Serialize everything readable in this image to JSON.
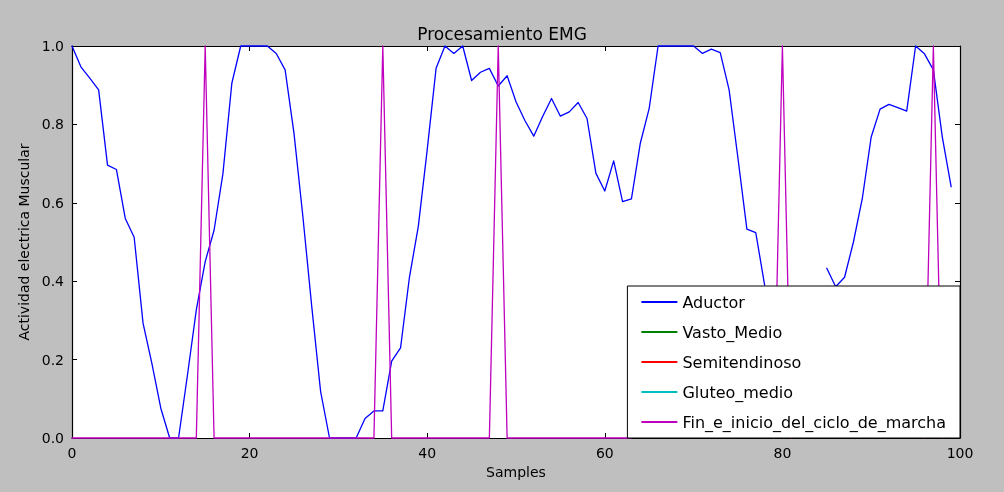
{
  "chart_data": {
    "type": "line",
    "title": "Procesamiento EMG",
    "xlabel": "Samples",
    "ylabel": "Actividad electrica Muscular",
    "x": [
      0,
      1,
      2,
      3,
      4,
      5,
      6,
      7,
      8,
      9,
      10,
      11,
      12,
      13,
      14,
      15,
      16,
      17,
      18,
      19,
      20,
      21,
      22,
      23,
      24,
      25,
      26,
      27,
      28,
      29,
      30,
      31,
      32,
      33,
      34,
      35,
      36,
      37,
      38,
      39,
      40,
      41,
      42,
      43,
      44,
      45,
      46,
      47,
      48,
      49,
      50,
      51,
      52,
      53,
      54,
      55,
      56,
      57,
      58,
      59,
      60,
      61,
      62,
      63,
      64,
      65,
      66,
      67,
      68,
      69,
      70,
      71,
      72,
      73,
      74,
      75,
      76,
      77,
      78,
      79,
      80,
      81,
      82,
      83,
      84,
      85,
      86,
      87,
      88,
      89,
      90,
      91,
      92,
      93,
      94,
      95,
      96,
      97,
      98,
      99
    ],
    "series": [
      {
        "name": "Aductor",
        "color": "#0000ff",
        "values": [
          1.0,
          0.947,
          0.918,
          0.888,
          0.696,
          0.685,
          0.56,
          0.512,
          0.293,
          0.19,
          0.076,
          0,
          0,
          0.16,
          0.327,
          0.45,
          0.53,
          0.675,
          0.905,
          1.0,
          1.0,
          1.0,
          1.0,
          0.981,
          0.939,
          0.777,
          0.565,
          0.335,
          0.118,
          0,
          0,
          0,
          0,
          0.05,
          0.069,
          0.069,
          0.196,
          0.23,
          0.41,
          0.54,
          0.735,
          0.943,
          1.0,
          0.981,
          1.0,
          0.912,
          0.933,
          0.943,
          0.898,
          0.924,
          0.858,
          0.81,
          0.77,
          0.82,
          0.866,
          0.821,
          0.832,
          0.856,
          0.815,
          0.675,
          0.63,
          0.707,
          0.603,
          0.61,
          0.752,
          0.841,
          1.0,
          1.0,
          1.0,
          1.0,
          1.0,
          0.981,
          0.992,
          0.983,
          0.888,
          0.713,
          0.533,
          0.524,
          0.39,
          null,
          null,
          null,
          null,
          null,
          null,
          0.433,
          0.386,
          0.41,
          0.5,
          0.611,
          0.768,
          0.839,
          0.851,
          0.843,
          0.834,
          1.0,
          0.98,
          0.939,
          0.769,
          0.641
        ]
      },
      {
        "name": "Vasto_Medio",
        "color": "#008000",
        "values": [
          null,
          null,
          null,
          null,
          null,
          null,
          null,
          null,
          null,
          null,
          null,
          null,
          null,
          null,
          null,
          null,
          null,
          null,
          null,
          null,
          null,
          null,
          null,
          null,
          null,
          null,
          null,
          null,
          null,
          null,
          null,
          null,
          null,
          null,
          null,
          null,
          null,
          null,
          null,
          null,
          null,
          null,
          null,
          null,
          null,
          null,
          null,
          null,
          null,
          null,
          null,
          null,
          null,
          null,
          null,
          null,
          null,
          null,
          null,
          null,
          null,
          null,
          null,
          null,
          null,
          null,
          null,
          null,
          null,
          null,
          null,
          null,
          null,
          null,
          null,
          null,
          null,
          null,
          null,
          null,
          null,
          null,
          null,
          null,
          null,
          null,
          null,
          null,
          null,
          null,
          null,
          null,
          null,
          null,
          null,
          null,
          null,
          null,
          null,
          null
        ]
      },
      {
        "name": "Semitendinoso",
        "color": "#ff0000",
        "values": [
          null,
          null,
          null,
          null,
          null,
          null,
          null,
          null,
          null,
          null,
          null,
          null,
          null,
          null,
          null,
          null,
          null,
          null,
          null,
          null,
          null,
          null,
          null,
          null,
          null,
          null,
          null,
          null,
          null,
          null,
          null,
          null,
          null,
          null,
          null,
          null,
          null,
          null,
          null,
          null,
          null,
          null,
          null,
          null,
          null,
          null,
          null,
          null,
          null,
          null,
          null,
          null,
          null,
          null,
          null,
          null,
          null,
          null,
          null,
          null,
          null,
          null,
          null,
          null,
          null,
          null,
          null,
          null,
          null,
          null,
          null,
          null,
          null,
          null,
          null,
          null,
          null,
          null,
          null,
          null,
          null,
          null,
          null,
          null,
          null,
          null,
          null,
          null,
          null,
          null,
          null,
          null,
          null,
          null,
          null,
          null,
          null,
          null,
          null,
          null
        ]
      },
      {
        "name": "Gluteo_medio",
        "color": "#00bfbf",
        "values": [
          null,
          null,
          null,
          null,
          null,
          null,
          null,
          null,
          null,
          null,
          null,
          null,
          null,
          null,
          null,
          null,
          null,
          null,
          null,
          null,
          null,
          null,
          null,
          null,
          null,
          null,
          null,
          null,
          null,
          null,
          null,
          null,
          null,
          null,
          null,
          null,
          null,
          null,
          null,
          null,
          null,
          null,
          null,
          null,
          null,
          null,
          null,
          null,
          null,
          null,
          null,
          null,
          null,
          null,
          null,
          null,
          null,
          null,
          null,
          null,
          null,
          null,
          null,
          null,
          null,
          null,
          null,
          null,
          null,
          null,
          null,
          null,
          null,
          null,
          null,
          null,
          null,
          null,
          null,
          null,
          null,
          null,
          null,
          null,
          null,
          null,
          null,
          null,
          null,
          null,
          null,
          null,
          null,
          null,
          null,
          null,
          null,
          null,
          null,
          null
        ]
      },
      {
        "name": "Fin_e_inicio_del_ciclo_de_marcha",
        "color": "#bf00bf",
        "values": [
          0,
          0,
          0,
          0,
          0,
          0,
          0,
          0,
          0,
          0,
          0,
          0,
          0,
          0,
          0,
          1,
          0,
          0,
          0,
          0,
          0,
          0,
          0,
          0,
          0,
          0,
          0,
          0,
          0,
          0,
          0,
          0,
          0,
          0,
          0,
          1,
          0,
          0,
          0,
          0,
          0,
          0,
          0,
          0,
          0,
          0,
          0,
          0,
          1,
          0,
          0,
          0,
          0,
          0,
          0,
          0,
          0,
          0,
          0,
          0,
          0,
          0,
          0,
          0,
          null,
          null,
          null,
          null,
          null,
          null,
          null,
          null,
          null,
          null,
          null,
          null,
          null,
          null,
          null,
          0,
          1,
          0,
          null,
          null,
          null,
          null,
          null,
          null,
          null,
          null,
          null,
          null,
          null,
          null,
          null,
          null,
          0,
          1,
          0,
          null
        ]
      }
    ],
    "xlim": [
      0,
      100
    ],
    "xticks": [
      0,
      20,
      40,
      60,
      80,
      100
    ],
    "ylim": [
      0,
      1.0
    ],
    "yticks": [
      {
        "value": 0,
        "label": "0.0"
      },
      {
        "value": 0.2,
        "label": "0.2"
      },
      {
        "value": 0.4,
        "label": "0.4"
      },
      {
        "value": 0.6,
        "label": "0.6"
      },
      {
        "value": 0.8,
        "label": "0.8"
      },
      {
        "value": 1.0,
        "label": "1.0"
      }
    ],
    "grid": false,
    "legend": "bottom right",
    "marker": "none",
    "line_style": "solid"
  }
}
